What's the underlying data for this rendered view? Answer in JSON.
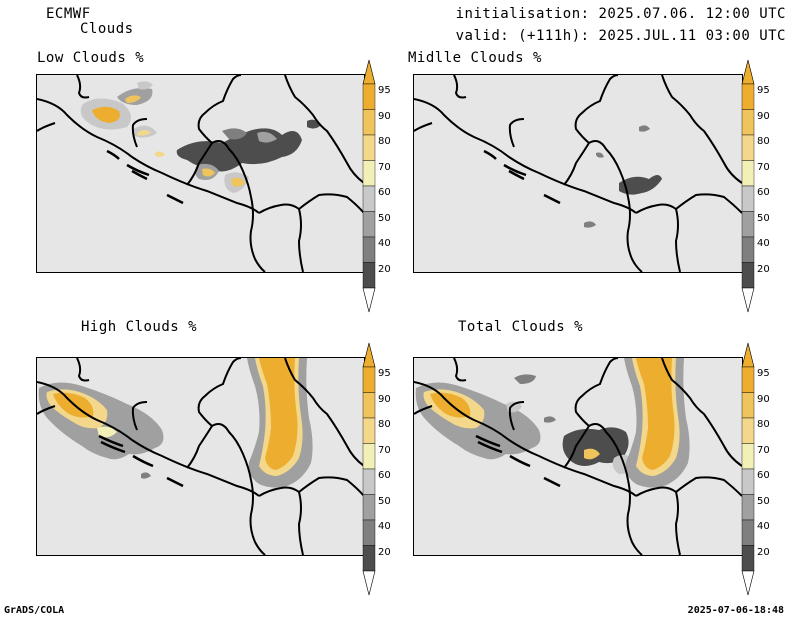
{
  "header": {
    "model": "ECMWF",
    "product": "Clouds",
    "initialisation": "initialisation: 2025.07.06. 12:00 UTC",
    "valid": "valid: (+111h): 2025.JUL.11 03:00 UTC"
  },
  "panels": [
    {
      "title": "Low Clouds %"
    },
    {
      "title": "Midlle Clouds %"
    },
    {
      "title": "High Clouds %"
    },
    {
      "title": "Total Clouds %"
    }
  ],
  "colorbar": {
    "ticks": [
      "20",
      "40",
      "50",
      "60",
      "70",
      "80",
      "90",
      "95"
    ],
    "colors": [
      "#4d4d4d",
      "#7f7f7f",
      "#a0a0a0",
      "#c8c8c8",
      "#f3f0b7",
      "#f3d88c",
      "#f0c45c",
      "#edae2f"
    ],
    "below_color": "#ffffff"
  },
  "footer": {
    "left": "GrADS/COLA",
    "right": "2025-07-06-18:48"
  }
}
